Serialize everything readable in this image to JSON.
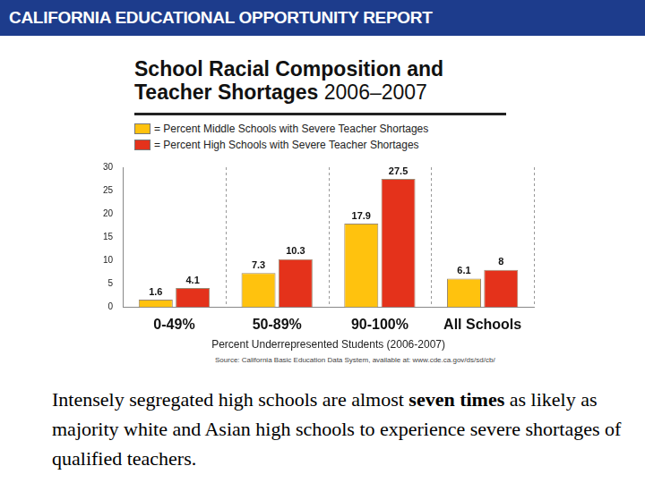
{
  "header": {
    "title": "CALIFORNIA EDUCATIONAL OPPORTUNITY REPORT"
  },
  "chart_data": {
    "type": "bar",
    "title": "School Racial Composition and Teacher Shortages",
    "subtitle": "2006–2007",
    "x_label": "Percent Underrepresented Students (2006-2007)",
    "categories": [
      "0-49%",
      "50-89%",
      "90-100%",
      "All Schools"
    ],
    "series": [
      {
        "name": "= Percent Middle Schools with Severe Teacher Shortages",
        "color": "#ffc20e",
        "values": [
          1.6,
          7.3,
          17.9,
          6.1
        ]
      },
      {
        "name": "= Percent High Schools with Severe Teacher Shortages",
        "color": "#e4321b",
        "values": [
          4.1,
          10.3,
          27.5,
          8
        ]
      }
    ],
    "ylim": [
      0,
      30
    ],
    "yticks": [
      0,
      5,
      10,
      15,
      20,
      25,
      30
    ],
    "legend": "top-left",
    "data_labels": true,
    "source": "Source: California Basic Education Data System, available at: www.cde.ca.gov/ds/sd/cb/"
  },
  "caption": {
    "before": "Intensely segregated high schools are almost ",
    "bold": "seven times",
    "after": " as likely as majority white and Asian high schools to experience severe shortages of qualified teachers."
  }
}
